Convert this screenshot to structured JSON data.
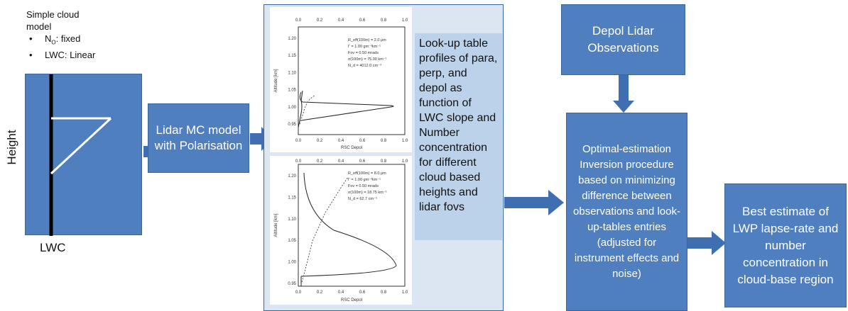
{
  "colors": {
    "box_fill": "#4f7fbf",
    "panel_fill": "#dce6f2",
    "arrow": "#3f6fb0",
    "lookup_fill": "#bcd2ea"
  },
  "model": {
    "title_line1": "Simple cloud",
    "title_line2": "model",
    "bullet1_prefix": "N",
    "bullet1_sub": "O",
    "bullet1_suffix": ": fixed",
    "bullet2": "LWC: Linear",
    "y_label": "Height",
    "x_label": "LWC"
  },
  "mc_model": {
    "text": "Lidar MC model with Polarisation"
  },
  "lookup": {
    "text": "Look-up table profiles of para, perp, and depol as function of LWC slope and Number concentration for different cloud based heights and lidar fovs"
  },
  "plot_top": {
    "top_ticks": [
      "0.0",
      "0.2",
      "0.4",
      "0.6",
      "0.8",
      "1.0"
    ],
    "bottom_ticks": [
      "0.0",
      "0.2",
      "0.4",
      "0.6",
      "0.8",
      "1.0"
    ],
    "y_ticks": [
      "1.20",
      "1.15",
      "1.10",
      "1.05",
      "1.00",
      "0.95"
    ],
    "y_label": "Altitude [km]",
    "x_label": "RSC Depol",
    "params": [
      "R_eff(100m) = 2.0 μm",
      "Γ = 1.00 gm⁻³km⁻¹",
      "Fov = 0.50 mrads",
      "σ(100m) = 75.00 km⁻¹",
      "N_d = 4012.0 cm⁻³"
    ]
  },
  "plot_bottom": {
    "top_ticks": [
      "0.0",
      "0.2",
      "0.4",
      "0.6",
      "0.8",
      "1.0"
    ],
    "bottom_ticks": [
      "0.0",
      "0.2",
      "0.4",
      "0.6",
      "0.8",
      "1.0"
    ],
    "y_ticks": [
      "1.20",
      "1.15",
      "1.10",
      "1.05",
      "1.00",
      "0.95"
    ],
    "y_label": "Altitude [km]",
    "x_label": "RSC Depol",
    "params": [
      "R_eff(100m) = 8.0 μm",
      "Γ = 1.00 gm⁻³km⁻¹",
      "Fov = 0.50 mrads",
      "σ(100m) = 18.75 km⁻¹",
      "N_d = 62.7 cm⁻³"
    ]
  },
  "depol_obs": {
    "text": "Depol Lidar Observations"
  },
  "optimal": {
    "text": "Optimal-estimation Inversion procedure based on minimizing difference between observations and look-up-tables entries (adjusted for instrument effects and noise)"
  },
  "best": {
    "text": "Best estimate of LWP lapse-rate and number concentration in cloud-base region"
  }
}
